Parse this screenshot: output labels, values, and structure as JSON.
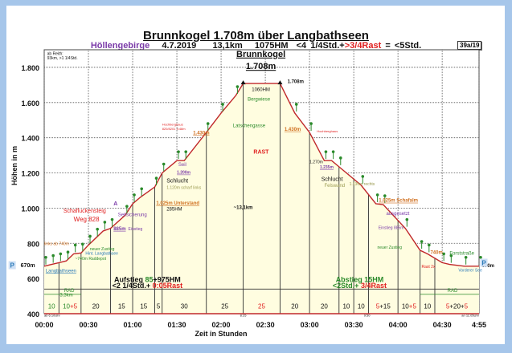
{
  "header": {
    "title": "Brunnkogel 1.708m über Langbathseen",
    "region": "Höllengebirge",
    "date": "4.7.2019",
    "distance": "13,1km",
    "ascent": "1075HM",
    "time_part": "<4 1/4Std.+",
    "rest_part": ">3/4Rast",
    "total_part": "= <5Std.",
    "badge": "39a/19"
  },
  "colors": {
    "route": "#c0282a",
    "fill": "#fffde0",
    "rest": "#e02020",
    "green": "#2a8a2a",
    "purple": "#7a3aa8",
    "orange": "#d07020",
    "blue": "#2a7ab8",
    "background": "#a6c6ea"
  },
  "chart_data": {
    "type": "area",
    "title": "Brunnkogel 1.708m über Langbathseen",
    "xlabel": "Zeit in Stunden",
    "ylabel": "Höhen in m",
    "xlim_minutes": [
      0,
      295
    ],
    "ylim": [
      400,
      1900
    ],
    "y_ticks": [
      400,
      600,
      800,
      1000,
      1200,
      1400,
      1600,
      1800
    ],
    "y_tick_labels": [
      "400",
      "600",
      "800",
      "1.000",
      "1.200",
      "1.400",
      "1.600",
      "1.800"
    ],
    "x_ticks_minutes": [
      0,
      30,
      60,
      90,
      120,
      150,
      180,
      210,
      240,
      270,
      295
    ],
    "x_tick_labels": [
      "00:00",
      "00:30",
      "01:00",
      "01:30",
      "02:00",
      "02:30",
      "03:00",
      "03:30",
      "04:00",
      "04:30",
      "4:55"
    ],
    "profile_minutes": [
      0,
      5,
      10,
      15,
      20,
      25,
      30,
      35,
      40,
      45,
      55,
      60,
      65,
      75,
      80,
      90,
      95,
      110,
      120,
      130,
      135,
      160,
      170,
      180,
      190,
      195,
      200,
      215,
      225,
      230,
      245,
      255,
      260,
      270,
      275,
      285,
      295
    ],
    "profile_elevation": [
      670,
      680,
      690,
      700,
      740,
      745,
      790,
      830,
      870,
      885,
      960,
      1025,
      1060,
      1120,
      1200,
      1270,
      1270,
      1430,
      1540,
      1640,
      1708,
      1708,
      1540,
      1430,
      1270,
      1270,
      1235,
      1130,
      1025,
      1020,
      885,
      760,
      740,
      690,
      680,
      670,
      670
    ],
    "segment_boundaries_minutes": [
      10,
      25,
      45,
      60,
      75,
      80,
      110,
      135,
      160,
      180,
      200,
      210,
      220,
      240,
      255,
      265
    ],
    "segments": [
      {
        "from": 0,
        "to": 10,
        "parts": [
          {
            "t": "10",
            "c": "green"
          }
        ]
      },
      {
        "from": 10,
        "to": 25,
        "parts": [
          {
            "t": "10",
            "c": "green"
          },
          {
            "t": "+5",
            "c": "rest"
          }
        ]
      },
      {
        "from": 25,
        "to": 45,
        "parts": [
          {
            "t": "20",
            "c": "dark"
          }
        ]
      },
      {
        "from": 45,
        "to": 60,
        "parts": [
          {
            "t": "15",
            "c": "dark"
          }
        ]
      },
      {
        "from": 60,
        "to": 75,
        "parts": [
          {
            "t": "15",
            "c": "dark"
          }
        ]
      },
      {
        "from": 75,
        "to": 80,
        "parts": [
          {
            "t": "5",
            "c": "dark"
          }
        ]
      },
      {
        "from": 80,
        "to": 110,
        "parts": [
          {
            "t": "30",
            "c": "dark"
          }
        ]
      },
      {
        "from": 110,
        "to": 135,
        "parts": [
          {
            "t": "25",
            "c": "dark"
          }
        ]
      },
      {
        "from": 135,
        "to": 160,
        "parts": [
          {
            "t": "25",
            "c": "rest"
          }
        ]
      },
      {
        "from": 160,
        "to": 180,
        "parts": [
          {
            "t": "20",
            "c": "dark"
          }
        ]
      },
      {
        "from": 180,
        "to": 200,
        "parts": [
          {
            "t": "20",
            "c": "dark"
          }
        ]
      },
      {
        "from": 200,
        "to": 210,
        "parts": [
          {
            "t": "10",
            "c": "dark"
          }
        ]
      },
      {
        "from": 210,
        "to": 220,
        "parts": [
          {
            "t": "10",
            "c": "dark"
          }
        ]
      },
      {
        "from": 220,
        "to": 240,
        "parts": [
          {
            "t": "5",
            "c": "rest"
          },
          {
            "t": "+15",
            "c": "dark"
          }
        ]
      },
      {
        "from": 240,
        "to": 255,
        "parts": [
          {
            "t": "10",
            "c": "dark"
          },
          {
            "t": "+5",
            "c": "rest"
          }
        ]
      },
      {
        "from": 255,
        "to": 265,
        "parts": [
          {
            "t": "10",
            "c": "dark"
          }
        ]
      },
      {
        "from": 265,
        "to": 295,
        "parts": [
          {
            "t": "5",
            "c": "rest"
          },
          {
            "t": "+20+",
            "c": "dark"
          },
          {
            "t": "5",
            "c": "rest"
          }
        ]
      }
    ],
    "annotations": [
      {
        "m": 2,
        "e": 1870,
        "t": "ab Reith:",
        "c": "dark",
        "s": 5
      },
      {
        "m": 2,
        "e": 1845,
        "t": "93km, >1 1/4Std.",
        "c": "dark",
        "s": 5
      },
      {
        "m": 147,
        "e": 1860,
        "t": "Brunnkogel",
        "c": "dark",
        "s": 11,
        "b": 1,
        "u": 1,
        "a": "middle"
      },
      {
        "m": 147,
        "e": 1790,
        "t": "1.708m",
        "c": "dark",
        "s": 11,
        "b": 1,
        "u": 1,
        "a": "middle"
      },
      {
        "m": 147,
        "e": 1665,
        "t": "1060HM",
        "c": "dark",
        "s": 6,
        "a": "middle"
      },
      {
        "m": 165,
        "e": 1710,
        "t": "1.708m",
        "c": "dark",
        "s": 6,
        "b": 1
      },
      {
        "m": 138,
        "e": 1610,
        "t": "Bergwiese",
        "c": "green",
        "s": 6
      },
      {
        "m": 128,
        "e": 1460,
        "t": "Latschengasse",
        "c": "green",
        "s": 6
      },
      {
        "m": 142,
        "e": 1310,
        "t": "RAST",
        "c": "rest",
        "s": 7,
        "b": 1
      },
      {
        "m": 80,
        "e": 1470,
        "t": "Hochberghaus",
        "c": "rest",
        "s": 4
      },
      {
        "m": 80,
        "e": 1445,
        "t": "820/8201 3:48m",
        "c": "rest",
        "s": 4
      },
      {
        "m": 101,
        "e": 1420,
        "t": "1.430m",
        "c": "orange",
        "s": 6,
        "b": 1,
        "u": 1
      },
      {
        "m": 91,
        "e": 1240,
        "t": "Seil",
        "c": "purple",
        "s": 6
      },
      {
        "m": 90,
        "e": 1195,
        "t": "1.200m",
        "c": "purple",
        "s": 5,
        "b": 1,
        "u": 1
      },
      {
        "m": 83,
        "e": 1145,
        "t": "Schlucht",
        "c": "dark",
        "s": 7
      },
      {
        "m": 83,
        "e": 1110,
        "t": "1.120m scharf links",
        "c": "#9a9a50",
        "s": 5
      },
      {
        "m": 76,
        "e": 1020,
        "t": "1.025m Unterstand",
        "c": "orange",
        "s": 6,
        "b": 1,
        "u": 1
      },
      {
        "m": 83,
        "e": 985,
        "t": "285HM",
        "c": "dark",
        "s": 6
      },
      {
        "m": 13,
        "e": 975,
        "t": "Schafluckensteig",
        "c": "rest",
        "s": 7
      },
      {
        "m": 20,
        "e": 925,
        "t": "Weg 828",
        "c": "rest",
        "s": 8
      },
      {
        "m": 47,
        "e": 1015,
        "t": "A",
        "c": "purple",
        "s": 7,
        "b": 1
      },
      {
        "m": 50,
        "e": 955,
        "t": "Seilsicherung",
        "c": "purple",
        "s": 6
      },
      {
        "m": 47,
        "e": 875,
        "t": "885m",
        "c": "purple",
        "s": 6,
        "b": 1,
        "u": 1
      },
      {
        "m": 57,
        "e": 875,
        "t": "Einstieg",
        "c": "purple",
        "s": 5
      },
      {
        "m": 0,
        "e": 790,
        "t": "links ab 740m",
        "c": "orange",
        "s": 5
      },
      {
        "m": 31,
        "e": 760,
        "t": "neuer Zustieg",
        "c": "green",
        "s": 5
      },
      {
        "m": 28,
        "e": 735,
        "t": "Hint. Langbathsee",
        "c": "blue",
        "s": 5
      },
      {
        "m": 21,
        "e": 705,
        "t": "~740m Raddepot",
        "c": "green",
        "s": 5
      },
      {
        "m": 1,
        "e": 635,
        "t": "Langbathseen",
        "c": "blue",
        "s": 6,
        "u": 1
      },
      {
        "m": 185,
        "e": 1430,
        "t": "Hochberghaus",
        "c": "rest",
        "s": 4
      },
      {
        "m": 163,
        "e": 1440,
        "t": "1.430m",
        "c": "orange",
        "s": 6,
        "b": 1,
        "u": 1
      },
      {
        "m": 180,
        "e": 1255,
        "t": "1.270m",
        "c": "dark",
        "s": 5
      },
      {
        "m": 187,
        "e": 1225,
        "t": "1.235m",
        "c": "purple",
        "s": 5,
        "b": 1,
        "u": 1
      },
      {
        "m": 188,
        "e": 1155,
        "t": "Schlucht",
        "c": "dark",
        "s": 7
      },
      {
        "m": 190,
        "e": 1120,
        "t": "Felswand",
        "c": "#9a9a50",
        "s": 6
      },
      {
        "m": 207,
        "e": 1130,
        "t": "1.130m rechts",
        "c": "#9a9a50",
        "s": 5
      },
      {
        "m": 227,
        "e": 1035,
        "t": "1.025m Schafalm",
        "c": "orange",
        "s": 6,
        "b": 1,
        "u": 1
      },
      {
        "m": 232,
        "e": 960,
        "t": "ausgesetzt",
        "c": "purple",
        "s": 6
      },
      {
        "m": 244,
        "e": 880,
        "t": "Einstieg 885m",
        "c": "purple",
        "s": 5,
        "a": "end"
      },
      {
        "m": 226,
        "e": 770,
        "t": "neuer Zustieg",
        "c": "green",
        "s": 5
      },
      {
        "m": 262,
        "e": 740,
        "t": "740m",
        "c": "orange",
        "s": 6,
        "b": 1
      },
      {
        "m": 275,
        "e": 735,
        "t": "Forststraße",
        "c": "green",
        "s": 6
      },
      {
        "m": 256,
        "e": 660,
        "t": "Rast 2x",
        "c": "rest",
        "s": 5
      },
      {
        "m": 281,
        "e": 640,
        "t": "Vorderer See",
        "c": "blue",
        "s": 5
      },
      {
        "m": 297,
        "e": 665,
        "t": "670m",
        "c": "dark",
        "s": 6,
        "b": 1
      },
      {
        "m": -16,
        "e": 665,
        "t": "670m",
        "c": "dark",
        "s": 7,
        "b": 1
      },
      {
        "m": 135,
        "e": 995,
        "t": "~13,1km",
        "c": "dark",
        "s": 6,
        "b": 1,
        "a": "middle"
      },
      {
        "m": 17,
        "e": 522,
        "t": "RAD",
        "c": "green",
        "s": 6,
        "a": "middle"
      },
      {
        "m": 15,
        "e": 497,
        "t": "3,3km",
        "c": "green",
        "s": 6,
        "a": "middle"
      },
      {
        "m": 277,
        "e": 522,
        "t": "RAD",
        "c": "green",
        "s": 6,
        "a": "middle"
      },
      {
        "m": 0,
        "e": 385,
        "t": "ab 6:10Uhr",
        "c": "dark",
        "s": 4
      },
      {
        "m": 135,
        "e": 385,
        "t": "8:25",
        "c": "dark",
        "s": 4,
        "a": "middle"
      },
      {
        "m": 219,
        "e": 385,
        "t": "9:50",
        "c": "dark",
        "s": 4,
        "a": "middle"
      },
      {
        "m": 295,
        "e": 385,
        "t": "an 11:05Uhr",
        "c": "dark",
        "s": 4,
        "a": "end"
      }
    ],
    "summaries": [
      {
        "m": 70,
        "e": 580,
        "a": "middle",
        "parts": [
          {
            "t": "Aufstieg ",
            "c": "dark"
          },
          {
            "t": "85",
            "c": "green"
          },
          {
            "t": "+975HM",
            "c": "dark"
          }
        ]
      },
      {
        "m": 70,
        "e": 545,
        "a": "middle",
        "parts": [
          {
            "t": "<2 1/4Std.+ ",
            "c": "dark"
          },
          {
            "t": "0:05Rast",
            "c": "rest"
          }
        ]
      },
      {
        "m": 214,
        "e": 580,
        "a": "middle",
        "parts": [
          {
            "t": "Abstieg 15HM",
            "c": "green"
          }
        ]
      },
      {
        "m": 214,
        "e": 545,
        "a": "middle",
        "parts": [
          {
            "t": "<2Std.+ ",
            "c": "green"
          },
          {
            "t": "3/4Rast",
            "c": "rest"
          }
        ]
      }
    ],
    "parking_label": "P",
    "grid": true
  }
}
